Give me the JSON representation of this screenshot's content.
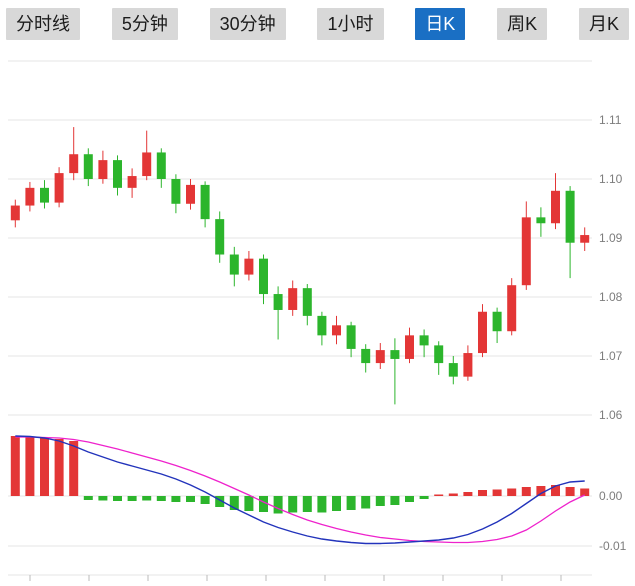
{
  "toolbar": {
    "buttons": [
      {
        "label": "分时线",
        "active": false
      },
      {
        "label": "5分钟",
        "active": false
      },
      {
        "label": "30分钟",
        "active": false
      },
      {
        "label": "1小时",
        "active": false
      },
      {
        "label": "日K",
        "active": true
      },
      {
        "label": "周K",
        "active": false
      },
      {
        "label": "月K",
        "active": false
      }
    ]
  },
  "colors": {
    "up": "#e33636",
    "down": "#2cb52c",
    "dif_line": "#2233bb",
    "dea_line": "#ee22cc",
    "grid": "#e4e4e4",
    "axis_text": "#7d7d7d",
    "tab_bg": "#d8d8d8",
    "tab_text": "#1c1c1c",
    "active_tab_bg": "#1a6fc4",
    "active_tab_text": "#ffffff"
  },
  "chart_data": {
    "type": "candlestick+macd",
    "title": "",
    "selected_timeframe": "日K",
    "price_axis": {
      "labels": [
        "1.11",
        "1.10",
        "1.09",
        "1.08",
        "1.07",
        "1.06"
      ],
      "values": [
        1.11,
        1.1,
        1.09,
        1.08,
        1.07,
        1.06
      ],
      "grid_top": 1.12,
      "position": "right"
    },
    "macd_axis": {
      "labels": [
        "0.00",
        "-0.01"
      ],
      "values": [
        0,
        -0.01
      ],
      "position": "right"
    },
    "candles_format": [
      "open",
      "high",
      "low",
      "close"
    ],
    "candles": [
      [
        1.093,
        1.0965,
        1.0918,
        1.0955
      ],
      [
        1.0955,
        1.0995,
        1.0945,
        1.0985
      ],
      [
        1.0985,
        1.0998,
        1.095,
        1.096
      ],
      [
        1.096,
        1.102,
        1.0952,
        1.101
      ],
      [
        1.101,
        1.1088,
        1.0998,
        1.1042
      ],
      [
        1.1042,
        1.1052,
        1.0988,
        1.1
      ],
      [
        1.1,
        1.1048,
        1.0992,
        1.1032
      ],
      [
        1.1032,
        1.104,
        1.0972,
        1.0985
      ],
      [
        1.0985,
        1.1018,
        1.0968,
        1.1005
      ],
      [
        1.1005,
        1.1082,
        1.0998,
        1.1045
      ],
      [
        1.1045,
        1.1052,
        1.0985,
        1.1
      ],
      [
        1.1,
        1.1008,
        1.0942,
        1.0958
      ],
      [
        1.0958,
        1.1,
        1.0948,
        1.099
      ],
      [
        1.099,
        1.0996,
        1.0918,
        1.0932
      ],
      [
        1.0932,
        1.0945,
        1.0858,
        1.0872
      ],
      [
        1.0872,
        1.0885,
        1.0818,
        1.0838
      ],
      [
        1.0838,
        1.0878,
        1.0828,
        1.0865
      ],
      [
        1.0865,
        1.0872,
        1.0788,
        1.0805
      ],
      [
        1.0805,
        1.0818,
        1.0728,
        1.0778
      ],
      [
        1.0778,
        1.0828,
        1.0768,
        1.0815
      ],
      [
        1.0815,
        1.0822,
        1.0752,
        1.0768
      ],
      [
        1.0768,
        1.0775,
        1.0718,
        1.0735
      ],
      [
        1.0735,
        1.0768,
        1.072,
        1.0752
      ],
      [
        1.0752,
        1.0758,
        1.0698,
        1.0712
      ],
      [
        1.0712,
        1.072,
        1.0672,
        1.0688
      ],
      [
        1.0688,
        1.0722,
        1.0678,
        1.071
      ],
      [
        1.071,
        1.073,
        1.0618,
        1.0695
      ],
      [
        1.0695,
        1.0748,
        1.0688,
        1.0735
      ],
      [
        1.0735,
        1.0745,
        1.0698,
        1.0718
      ],
      [
        1.0718,
        1.0725,
        1.0668,
        1.0688
      ],
      [
        1.0688,
        1.07,
        1.0652,
        1.0665
      ],
      [
        1.0665,
        1.0718,
        1.0658,
        1.0705
      ],
      [
        1.0705,
        1.0788,
        1.0698,
        1.0775
      ],
      [
        1.0775,
        1.0782,
        1.0722,
        1.0742
      ],
      [
        1.0742,
        1.0832,
        1.0735,
        1.082
      ],
      [
        1.082,
        1.0962,
        1.0812,
        1.0935
      ],
      [
        1.0935,
        1.0952,
        1.0902,
        1.0925
      ],
      [
        1.0925,
        1.101,
        1.0915,
        1.098
      ],
      [
        1.098,
        1.0988,
        1.0832,
        1.0892
      ],
      [
        1.0892,
        1.0918,
        1.0878,
        1.0905
      ]
    ],
    "macd": {
      "hist": [
        0.012,
        0.0119,
        0.0117,
        0.0114,
        0.011,
        -0.0008,
        -0.0009,
        -0.001,
        -0.001,
        -0.0009,
        -0.001,
        -0.0012,
        -0.0012,
        -0.0016,
        -0.0022,
        -0.0028,
        -0.003,
        -0.0032,
        -0.0035,
        -0.0033,
        -0.0032,
        -0.0033,
        -0.003,
        -0.0028,
        -0.0025,
        -0.002,
        -0.0018,
        -0.0012,
        -0.0006,
        0.0003,
        0.0005,
        0.0008,
        0.0012,
        0.0013,
        0.0015,
        0.0018,
        0.002,
        0.0022,
        0.0018,
        0.0015
      ],
      "dif": [
        0.012,
        0.0119,
        0.0116,
        0.011,
        0.01,
        0.0088,
        0.0078,
        0.0068,
        0.006,
        0.0052,
        0.0044,
        0.0034,
        0.0022,
        0.0008,
        -0.0008,
        -0.0024,
        -0.0038,
        -0.0052,
        -0.0063,
        -0.0072,
        -0.008,
        -0.0086,
        -0.009,
        -0.0093,
        -0.0095,
        -0.0095,
        -0.0094,
        -0.0092,
        -0.009,
        -0.0088,
        -0.0084,
        -0.0077,
        -0.0066,
        -0.0052,
        -0.0035,
        -0.0015,
        0.0005,
        0.002,
        0.0028,
        0.003
      ],
      "dea": [
        0.0118,
        0.0118,
        0.0117,
        0.0116,
        0.0113,
        0.0108,
        0.0101,
        0.0094,
        0.0086,
        0.0078,
        0.007,
        0.0061,
        0.0051,
        0.004,
        0.0028,
        0.0015,
        0.0002,
        -0.0012,
        -0.0025,
        -0.0037,
        -0.0048,
        -0.0057,
        -0.0065,
        -0.0072,
        -0.0078,
        -0.0083,
        -0.0086,
        -0.0089,
        -0.0091,
        -0.0092,
        -0.0093,
        -0.0093,
        -0.0091,
        -0.0087,
        -0.008,
        -0.0068,
        -0.005,
        -0.003,
        -0.0012,
        0.0002
      ]
    }
  }
}
